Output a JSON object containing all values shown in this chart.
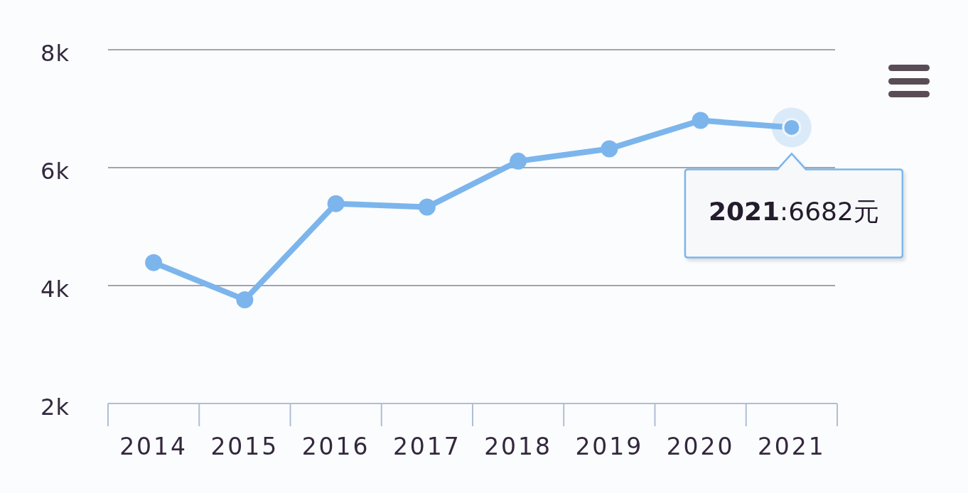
{
  "chart_data": {
    "type": "line",
    "categories": [
      "2014",
      "2015",
      "2016",
      "2017",
      "2018",
      "2019",
      "2020",
      "2021"
    ],
    "series": [
      {
        "color": "#7cb5ec",
        "values": [
          4390,
          3760,
          5390,
          5330,
          6110,
          6320,
          6800,
          6682
        ]
      }
    ],
    "ylim": [
      2000,
      8000
    ],
    "yticks": [
      {
        "value": 2000,
        "label": "2k"
      },
      {
        "value": 4000,
        "label": "4k"
      },
      {
        "value": 6000,
        "label": "6k"
      },
      {
        "value": 8000,
        "label": "8k"
      }
    ],
    "grid": "y",
    "marker": "circle",
    "annotations": [
      {
        "text": "2021:6682元",
        "x": "2021",
        "y": 6682
      }
    ]
  }
}
